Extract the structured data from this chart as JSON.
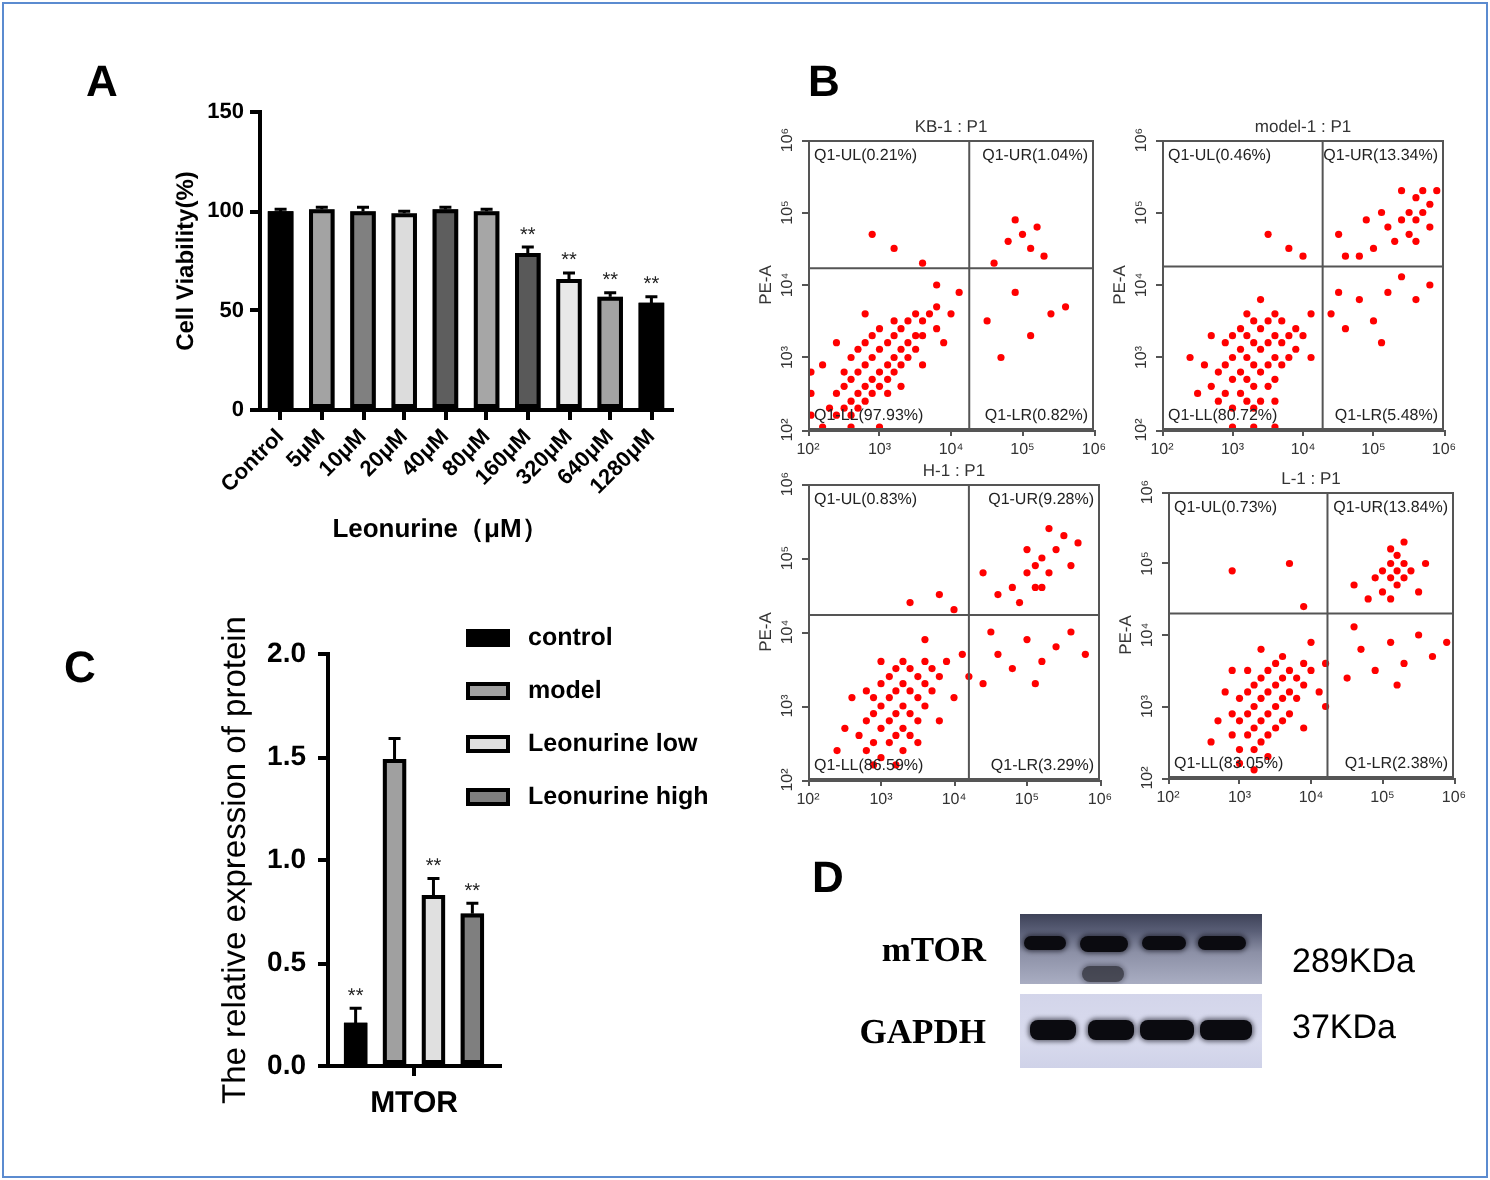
{
  "chart_data": [
    {
      "type": "bar",
      "xlabel": "Leonurine（μM）",
      "ylabel": "Cell Viability(%)",
      "annotations": [
        "A"
      ],
      "categories": [
        "Control",
        "5μM",
        "10μM",
        "20μM",
        "40μM",
        "80μM",
        "160μM",
        "320μM",
        "640μM",
        "1280μM"
      ],
      "values": [
        100,
        101,
        100,
        99,
        101,
        100,
        79,
        66,
        57,
        54
      ],
      "colors": [
        "#000000",
        "#a3a3a3",
        "#808080",
        "#dcdcdc",
        "#5e5e5e",
        "#a6a6a6",
        "#595959",
        "#e8e8e8",
        "#a3a3a3",
        "#000000"
      ],
      "errors": [
        1,
        1,
        2,
        1,
        1,
        1,
        3,
        3,
        2,
        3
      ],
      "value_labels": [
        null,
        null,
        null,
        null,
        null,
        null,
        "**",
        "**",
        "**",
        "**"
      ],
      "ylim": [
        0,
        150
      ],
      "yticks": [
        0,
        50,
        100,
        150
      ],
      "grid": false
    },
    {
      "type": "scatter",
      "title": "KB-1 : P1",
      "ylabel": "PE-A",
      "annotations": [
        "B",
        "Q1-UL(0.21%)",
        "Q1-UR(1.04%)",
        "Q1-LL(97.93%)",
        "Q1-LR(0.82%)"
      ],
      "x": [
        200,
        250,
        250,
        320,
        320,
        320,
        400,
        400,
        400,
        400,
        500,
        500,
        500,
        500,
        630,
        630,
        630,
        630,
        790,
        790,
        790,
        790,
        1000,
        1000,
        1000,
        1000,
        1300,
        1300,
        1300,
        1300,
        1600,
        1600,
        1600,
        1600,
        2000,
        2000,
        2000,
        2500,
        2500,
        2500,
        3200,
        3200,
        3200,
        4000,
        4000,
        5000,
        6300,
        6300,
        110,
        110,
        110,
        160,
        400,
        1000,
        160,
        250,
        2000,
        4000,
        7900,
        10000,
        13000,
        6300,
        630,
        1600,
        4000,
        790,
        63000,
        100000,
        130000,
        79000,
        160000,
        40000,
        200000,
        32000,
        79000,
        250000,
        400000,
        50000,
        130000
      ],
      "values": [
        200,
        160,
        320,
        200,
        400,
        630,
        160,
        250,
        500,
        1000,
        200,
        320,
        630,
        1300,
        250,
        400,
        790,
        1600,
        320,
        500,
        1000,
        2000,
        400,
        630,
        1300,
        2500,
        320,
        500,
        790,
        1600,
        630,
        1000,
        2000,
        3200,
        790,
        1300,
        2500,
        1000,
        1600,
        3200,
        1300,
        2000,
        4000,
        2000,
        3200,
        4000,
        2500,
        5000,
        160,
        320,
        630,
        110,
        110,
        110,
        790,
        1600,
        400,
        790,
        1600,
        4000,
        7900,
        10000,
        4000,
        32000,
        20000,
        50000,
        40000,
        50000,
        32000,
        79000,
        63000,
        20000,
        25000,
        3200,
        7900,
        4000,
        5000,
        1000,
        2000
      ],
      "color": "#ff0000",
      "marker": "circle",
      "log": "xy",
      "xlim": [
        100,
        1000000
      ],
      "ylim": [
        100,
        1000000
      ],
      "xticks": [
        {
          "value": 100,
          "label": "10²"
        },
        {
          "value": 1000,
          "label": "10³"
        },
        {
          "value": 10000,
          "label": "10⁴"
        },
        {
          "value": 100000,
          "label": "10⁵"
        },
        {
          "value": 1000000,
          "label": "10⁶"
        }
      ],
      "yticks": [
        {
          "value": 100,
          "label": "10²"
        },
        {
          "value": 1000,
          "label": "10³"
        },
        {
          "value": 10000,
          "label": "10⁴"
        },
        {
          "value": 100000,
          "label": "10⁵"
        },
        {
          "value": 1000000,
          "label": "10⁶"
        }
      ],
      "ref_lines": [
        {
          "axis": "x",
          "value": 18000,
          "color": "#555555"
        },
        {
          "axis": "y",
          "value": 17000,
          "color": "#555555"
        }
      ],
      "grid": false
    },
    {
      "type": "scatter",
      "title": "model-1 : P1",
      "ylabel": "PE-A",
      "annotations": [
        "Q1-UL(0.46%)",
        "Q1-UR(13.34%)",
        "Q1-LL(80.72%)",
        "Q1-LR(5.48%)"
      ],
      "x": [
        500,
        630,
        630,
        790,
        790,
        790,
        1000,
        1000,
        1000,
        1000,
        1300,
        1300,
        1300,
        1300,
        1600,
        1600,
        1600,
        1600,
        1600,
        2000,
        2000,
        2000,
        2000,
        2500,
        2500,
        2500,
        2500,
        3200,
        3200,
        3200,
        3200,
        4000,
        4000,
        4000,
        4000,
        5000,
        5000,
        5000,
        6300,
        6300,
        7900,
        7900,
        10000,
        2000,
        4000,
        400,
        320,
        500,
        1000,
        2000,
        4000,
        13000,
        13000,
        2500,
        250,
        6300,
        10000,
        3200,
        320000,
        400000,
        400000,
        500000,
        500000,
        630000,
        320000,
        250000,
        630000,
        400000,
        790000,
        200000,
        160000,
        100000,
        63000,
        32000,
        40000,
        130000,
        250000,
        79000,
        25000,
        40000,
        63000,
        100000,
        160000,
        250000,
        400000,
        630000,
        32000,
        130000
      ],
      "values": [
        400,
        250,
        630,
        320,
        790,
        1600,
        200,
        500,
        1000,
        2000,
        320,
        630,
        1300,
        2500,
        250,
        500,
        1000,
        2000,
        4000,
        400,
        790,
        1600,
        3200,
        250,
        630,
        1300,
        2500,
        400,
        790,
        1600,
        3200,
        500,
        1000,
        2000,
        4000,
        790,
        1600,
        3200,
        1000,
        2000,
        1300,
        2500,
        2000,
        200,
        250,
        790,
        320,
        2000,
        110,
        110,
        110,
        1000,
        4000,
        6300,
        1000,
        32000,
        25000,
        50000,
        100000,
        79000,
        160000,
        100000,
        200000,
        130000,
        50000,
        79000,
        63000,
        40000,
        200000,
        40000,
        63000,
        32000,
        25000,
        50000,
        25000,
        100000,
        200000,
        79000,
        4000,
        2500,
        6300,
        3200,
        7900,
        13000,
        6300,
        10000,
        7900,
        1600
      ],
      "color": "#ff0000",
      "marker": "circle",
      "log": "xy",
      "xlim": [
        100,
        1000000
      ],
      "ylim": [
        100,
        1000000
      ],
      "xticks": [
        {
          "value": 100,
          "label": "10²"
        },
        {
          "value": 1000,
          "label": "10³"
        },
        {
          "value": 10000,
          "label": "10⁴"
        },
        {
          "value": 100000,
          "label": "10⁵"
        },
        {
          "value": 1000000,
          "label": "10⁶"
        }
      ],
      "yticks": [
        {
          "value": 100,
          "label": "10²"
        },
        {
          "value": 1000,
          "label": "10³"
        },
        {
          "value": 10000,
          "label": "10⁴"
        },
        {
          "value": 100000,
          "label": "10⁵"
        },
        {
          "value": 1000000,
          "label": "10⁶"
        }
      ],
      "ref_lines": [
        {
          "axis": "x",
          "value": 19000,
          "color": "#555555"
        },
        {
          "axis": "y",
          "value": 18000,
          "color": "#555555"
        }
      ],
      "grid": false
    },
    {
      "type": "scatter",
      "title": "H-1 : P1",
      "ylabel": "PE-A",
      "annotations": [
        "Q1-UL(0.83%)",
        "Q1-UR(9.28%)",
        "Q1-LL(86.59%)",
        "Q1-LR(3.29%)"
      ],
      "x": [
        500,
        630,
        630,
        790,
        790,
        790,
        1000,
        1000,
        1000,
        1000,
        1300,
        1300,
        1300,
        1300,
        1600,
        1600,
        1600,
        1600,
        2000,
        2000,
        2000,
        2000,
        2000,
        2500,
        2500,
        2500,
        2500,
        3200,
        3200,
        3200,
        4000,
        4000,
        4000,
        5000,
        5000,
        6300,
        7900,
        3200,
        630,
        1000,
        320,
        400,
        250,
        10000,
        13000,
        6300,
        1600,
        790,
        4000,
        16000,
        2500,
        6300,
        10000,
        100000,
        130000,
        160000,
        200000,
        160000,
        250000,
        320000,
        100000,
        63000,
        40000,
        25000,
        400000,
        500000,
        79000,
        200000,
        130000,
        25000,
        40000,
        63000,
        100000,
        160000,
        250000,
        400000,
        630000,
        32000,
        130000
      ],
      "values": [
        400,
        250,
        630,
        320,
        790,
        1300,
        200,
        500,
        1000,
        2000,
        320,
        630,
        1300,
        2500,
        400,
        790,
        1600,
        3200,
        250,
        500,
        1000,
        2000,
        4000,
        400,
        790,
        1600,
        3200,
        630,
        1300,
        2500,
        1000,
        2000,
        4000,
        1600,
        3200,
        2500,
        4000,
        320,
        1600,
        4000,
        500,
        1300,
        250,
        1300,
        5000,
        630,
        160,
        160,
        7900,
        2500,
        25000,
        32000,
        20000,
        63000,
        79000,
        100000,
        63000,
        40000,
        130000,
        200000,
        130000,
        40000,
        32000,
        63000,
        79000,
        160000,
        25000,
        250000,
        40000,
        2000,
        5000,
        3200,
        7900,
        4000,
        6300,
        10000,
        5000,
        10000,
        2000
      ],
      "color": "#ff0000",
      "marker": "circle",
      "log": "xy",
      "xlim": [
        100,
        1000000
      ],
      "ylim": [
        100,
        1000000
      ],
      "xticks": [
        {
          "value": 100,
          "label": "10²"
        },
        {
          "value": 1000,
          "label": "10³"
        },
        {
          "value": 10000,
          "label": "10⁴"
        },
        {
          "value": 100000,
          "label": "10⁵"
        },
        {
          "value": 1000000,
          "label": "10⁶"
        }
      ],
      "yticks": [
        {
          "value": 100,
          "label": "10²"
        },
        {
          "value": 1000,
          "label": "10³"
        },
        {
          "value": 10000,
          "label": "10⁴"
        },
        {
          "value": 100000,
          "label": "10⁵"
        },
        {
          "value": 1000000,
          "label": "10⁶"
        }
      ],
      "ref_lines": [
        {
          "axis": "x",
          "value": 16000,
          "color": "#555555"
        },
        {
          "axis": "y",
          "value": 17000,
          "color": "#555555"
        }
      ],
      "grid": false
    },
    {
      "type": "scatter",
      "title": "L-1 : P1",
      "ylabel": "PE-A",
      "annotations": [
        "Q1-UL(0.73%)",
        "Q1-UR(13.84%)",
        "Q1-LL(83.05%)",
        "Q1-LR(2.38%)"
      ],
      "x": [
        790,
        790,
        1000,
        1000,
        1000,
        1300,
        1300,
        1300,
        1600,
        1600,
        1600,
        1600,
        2000,
        2000,
        2000,
        2000,
        2500,
        2500,
        2500,
        2500,
        3200,
        3200,
        3200,
        3200,
        4000,
        4000,
        4000,
        5000,
        5000,
        5000,
        6300,
        6300,
        7900,
        7900,
        10000,
        2500,
        1300,
        4000,
        13000,
        1000,
        500,
        630,
        400,
        16000,
        16000,
        2000,
        7900,
        1600,
        790,
        10000,
        790,
        5000,
        7900,
        130000,
        160000,
        130000,
        160000,
        200000,
        100000,
        160000,
        200000,
        100000,
        79000,
        250000,
        130000,
        200000,
        63000,
        400000,
        40000,
        320000,
        130000,
        32000,
        50000,
        79000,
        130000,
        200000,
        320000,
        500000,
        790000,
        40000,
        160000
      ],
      "values": [
        400,
        790,
        250,
        630,
        1300,
        400,
        790,
        1600,
        250,
        500,
        1000,
        2000,
        320,
        630,
        1300,
        2500,
        400,
        790,
        1600,
        3200,
        500,
        1000,
        2000,
        4000,
        630,
        1300,
        2500,
        790,
        1600,
        3200,
        1300,
        2500,
        2000,
        4000,
        3200,
        200,
        3200,
        5000,
        1600,
        160,
        630,
        1600,
        320,
        4000,
        1000,
        6300,
        500,
        130,
        3200,
        7900,
        79000,
        100000,
        25000,
        63000,
        79000,
        100000,
        50000,
        100000,
        79000,
        130000,
        63000,
        40000,
        63000,
        79000,
        160000,
        200000,
        32000,
        100000,
        50000,
        40000,
        32000,
        2500,
        6300,
        3200,
        7900,
        4000,
        10000,
        5000,
        7900,
        13000,
        2000
      ],
      "color": "#ff0000",
      "marker": "circle",
      "log": "xy",
      "xlim": [
        100,
        1000000
      ],
      "ylim": [
        100,
        1000000
      ],
      "xticks": [
        {
          "value": 100,
          "label": "10²"
        },
        {
          "value": 1000,
          "label": "10³"
        },
        {
          "value": 10000,
          "label": "10⁴"
        },
        {
          "value": 100000,
          "label": "10⁵"
        },
        {
          "value": 1000000,
          "label": "10⁶"
        }
      ],
      "yticks": [
        {
          "value": 100,
          "label": "10²"
        },
        {
          "value": 1000,
          "label": "10³"
        },
        {
          "value": 10000,
          "label": "10⁴"
        },
        {
          "value": 100000,
          "label": "10⁵"
        },
        {
          "value": 1000000,
          "label": "10⁶"
        }
      ],
      "ref_lines": [
        {
          "axis": "x",
          "value": 17000,
          "color": "#555555"
        },
        {
          "axis": "y",
          "value": 20000,
          "color": "#555555"
        }
      ],
      "grid": false
    },
    {
      "type": "bar",
      "ylabel": "The relative expression of protein",
      "annotations": [
        "C"
      ],
      "categories": [
        "MTOR"
      ],
      "series": [
        {
          "name": "control",
          "color": "#000000",
          "values": [
            0.21
          ],
          "errors": [
            0.07
          ],
          "value_labels": [
            "**"
          ]
        },
        {
          "name": "model",
          "color": "#a0a0a0",
          "values": [
            1.49
          ],
          "errors": [
            0.1
          ]
        },
        {
          "name": "Leonurine low",
          "color": "#e0e0e0",
          "values": [
            0.83
          ],
          "errors": [
            0.08
          ],
          "value_labels": [
            "**"
          ]
        },
        {
          "name": "Leonurine high",
          "color": "#7f7f7f",
          "values": [
            0.74
          ],
          "errors": [
            0.05
          ],
          "value_labels": [
            "**"
          ]
        }
      ],
      "ylim": [
        0,
        2
      ],
      "yticks": [
        {
          "value": 0,
          "label": "0.0"
        },
        0.5,
        {
          "value": 1,
          "label": "1.0"
        },
        1.5,
        {
          "value": 2,
          "label": "2.0"
        }
      ],
      "legend": "top right",
      "grid": false
    },
    {
      "type": "other",
      "annotations": [
        "D",
        "mTOR",
        "289KDa",
        "GAPDH",
        "37KDa"
      ]
    }
  ]
}
